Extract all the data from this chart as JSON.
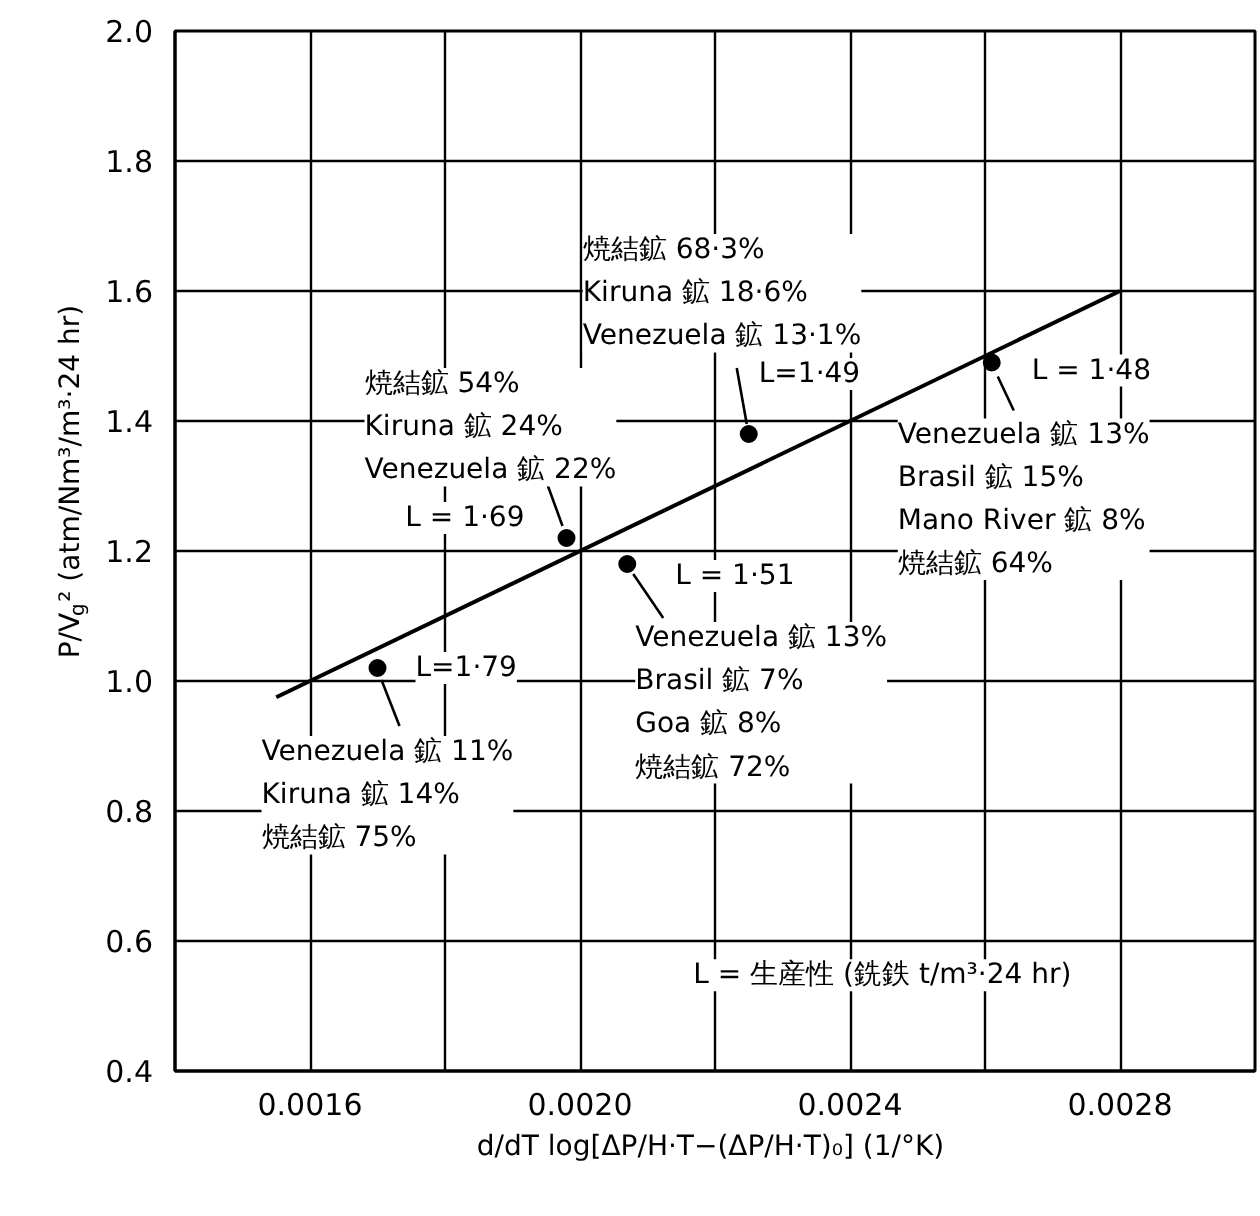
{
  "chart_data": {
    "type": "scatter",
    "xlabel": "d/dT log[ΔP/H·T−(ΔP/H·T)₀]  (1/°K)",
    "ylabel": "P/V$_{g}$² (atm/Nm³/m³·24 hr)",
    "xlim": [
      0.0014,
      0.003
    ],
    "ylim": [
      0.4,
      2.0
    ],
    "xticks": [
      0.0016,
      {
        "value": 0.0018,
        "label": null
      },
      {
        "value": 0.002,
        "label": "0.0020"
      },
      {
        "value": 0.0022,
        "label": null
      },
      0.0024,
      {
        "value": 0.0026,
        "label": null
      },
      0.0028
    ],
    "yticks": [
      0.4,
      0.6,
      0.8,
      {
        "value": 1.0,
        "label": "1.0"
      },
      1.2,
      1.4,
      1.6,
      1.8,
      {
        "value": 2.0,
        "label": "2.0"
      }
    ],
    "grid": true,
    "marker": "circle",
    "series": [
      {
        "color": "#000000",
        "x": [
          0.0017,
          0.00198,
          0.00207,
          0.00225,
          0.00261
        ],
        "values": [
          1.02,
          1.22,
          1.18,
          1.38,
          1.49
        ]
      },
      {
        "type": "line",
        "color": "#000000",
        "x": [
          0.00155,
          0.0028
        ],
        "values": [
          0.975,
          1.6
        ],
        "marker": "none",
        "line_style": "solid"
      }
    ],
    "annotations": [
      {
        "text": "L=1·79",
        "x": 0.0017,
        "y": 1.02
      },
      {
        "text": "Venezuela 鉱 11%\nKiruna 鉱 14%\n焼結鉱 75%",
        "x": 0.0017,
        "y": 1.02
      },
      {
        "text": "L = 1·69",
        "x": 0.00198,
        "y": 1.22
      },
      {
        "text": "焼結鉱 54%\nKiruna 鉱 24%\nVenezuela 鉱 22%",
        "x": 0.00198,
        "y": 1.22
      },
      {
        "text": "L = 1·51",
        "x": 0.00207,
        "y": 1.18
      },
      {
        "text": "Venezuela 鉱 13%\nBrasil 鉱 7%\nGoa 鉱 8%\n焼結鉱 72%",
        "x": 0.00207,
        "y": 1.18
      },
      {
        "text": "L=1·49",
        "x": 0.00225,
        "y": 1.38
      },
      {
        "text": "焼結鉱 68·3%\nKiruna 鉱 18·6%\nVenezuela 鉱 13·1%",
        "x": 0.00225,
        "y": 1.38
      },
      {
        "text": "L = 1·48",
        "x": 0.00261,
        "y": 1.49
      },
      {
        "text": "Venezuela 鉱 13%\nBrasil 鉱 15%\nMano River 鉱 8%\n焼結鉱 64%",
        "x": 0.00261,
        "y": 1.49
      },
      "L = 生産性 (銑鉄 t/m³·24 hr)"
    ]
  }
}
